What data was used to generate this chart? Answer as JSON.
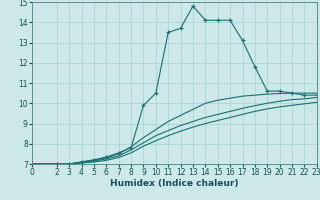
{
  "xlabel": "Humidex (Indice chaleur)",
  "bg_color": "#cce8e8",
  "grid_color": "#a8d0d0",
  "line_color": "#1a7070",
  "xlim": [
    0,
    23
  ],
  "ylim": [
    7,
    15
  ],
  "xticks": [
    0,
    2,
    3,
    4,
    5,
    6,
    7,
    8,
    9,
    10,
    11,
    12,
    13,
    14,
    15,
    16,
    17,
    18,
    19,
    20,
    21,
    22,
    23
  ],
  "yticks": [
    7,
    8,
    9,
    10,
    11,
    12,
    13,
    14,
    15
  ],
  "curves": [
    {
      "x": [
        0,
        2,
        3,
        4,
        5,
        6,
        7,
        8,
        9,
        10,
        11,
        12,
        13,
        14,
        15,
        16,
        17,
        18,
        19,
        20,
        21,
        22,
        23
      ],
      "y": [
        7.0,
        7.0,
        7.0,
        7.1,
        7.2,
        7.35,
        7.55,
        7.8,
        9.9,
        10.5,
        13.5,
        13.7,
        14.8,
        14.1,
        14.1,
        14.1,
        13.1,
        11.8,
        10.6,
        10.6,
        10.5,
        10.4,
        10.4
      ],
      "marker": true
    },
    {
      "x": [
        0,
        2,
        3,
        4,
        5,
        6,
        7,
        8,
        9,
        10,
        11,
        12,
        13,
        14,
        15,
        16,
        17,
        18,
        19,
        20,
        21,
        22,
        23
      ],
      "y": [
        7.0,
        7.0,
        7.0,
        7.1,
        7.2,
        7.3,
        7.5,
        7.85,
        8.3,
        8.7,
        9.1,
        9.4,
        9.7,
        10.0,
        10.15,
        10.25,
        10.35,
        10.4,
        10.45,
        10.48,
        10.5,
        10.5,
        10.5
      ],
      "marker": false
    },
    {
      "x": [
        0,
        2,
        3,
        4,
        5,
        6,
        7,
        8,
        9,
        10,
        11,
        12,
        13,
        14,
        15,
        16,
        17,
        18,
        19,
        20,
        21,
        22,
        23
      ],
      "y": [
        7.0,
        7.0,
        7.0,
        7.08,
        7.15,
        7.25,
        7.4,
        7.7,
        8.05,
        8.4,
        8.65,
        8.9,
        9.1,
        9.3,
        9.45,
        9.6,
        9.75,
        9.88,
        10.0,
        10.1,
        10.18,
        10.22,
        10.28
      ],
      "marker": false
    },
    {
      "x": [
        0,
        2,
        3,
        4,
        5,
        6,
        7,
        8,
        9,
        10,
        11,
        12,
        13,
        14,
        15,
        16,
        17,
        18,
        19,
        20,
        21,
        22,
        23
      ],
      "y": [
        7.0,
        7.0,
        7.0,
        7.05,
        7.1,
        7.18,
        7.32,
        7.55,
        7.88,
        8.15,
        8.4,
        8.62,
        8.82,
        9.0,
        9.15,
        9.3,
        9.45,
        9.6,
        9.72,
        9.82,
        9.9,
        9.97,
        10.05
      ],
      "marker": false
    }
  ]
}
